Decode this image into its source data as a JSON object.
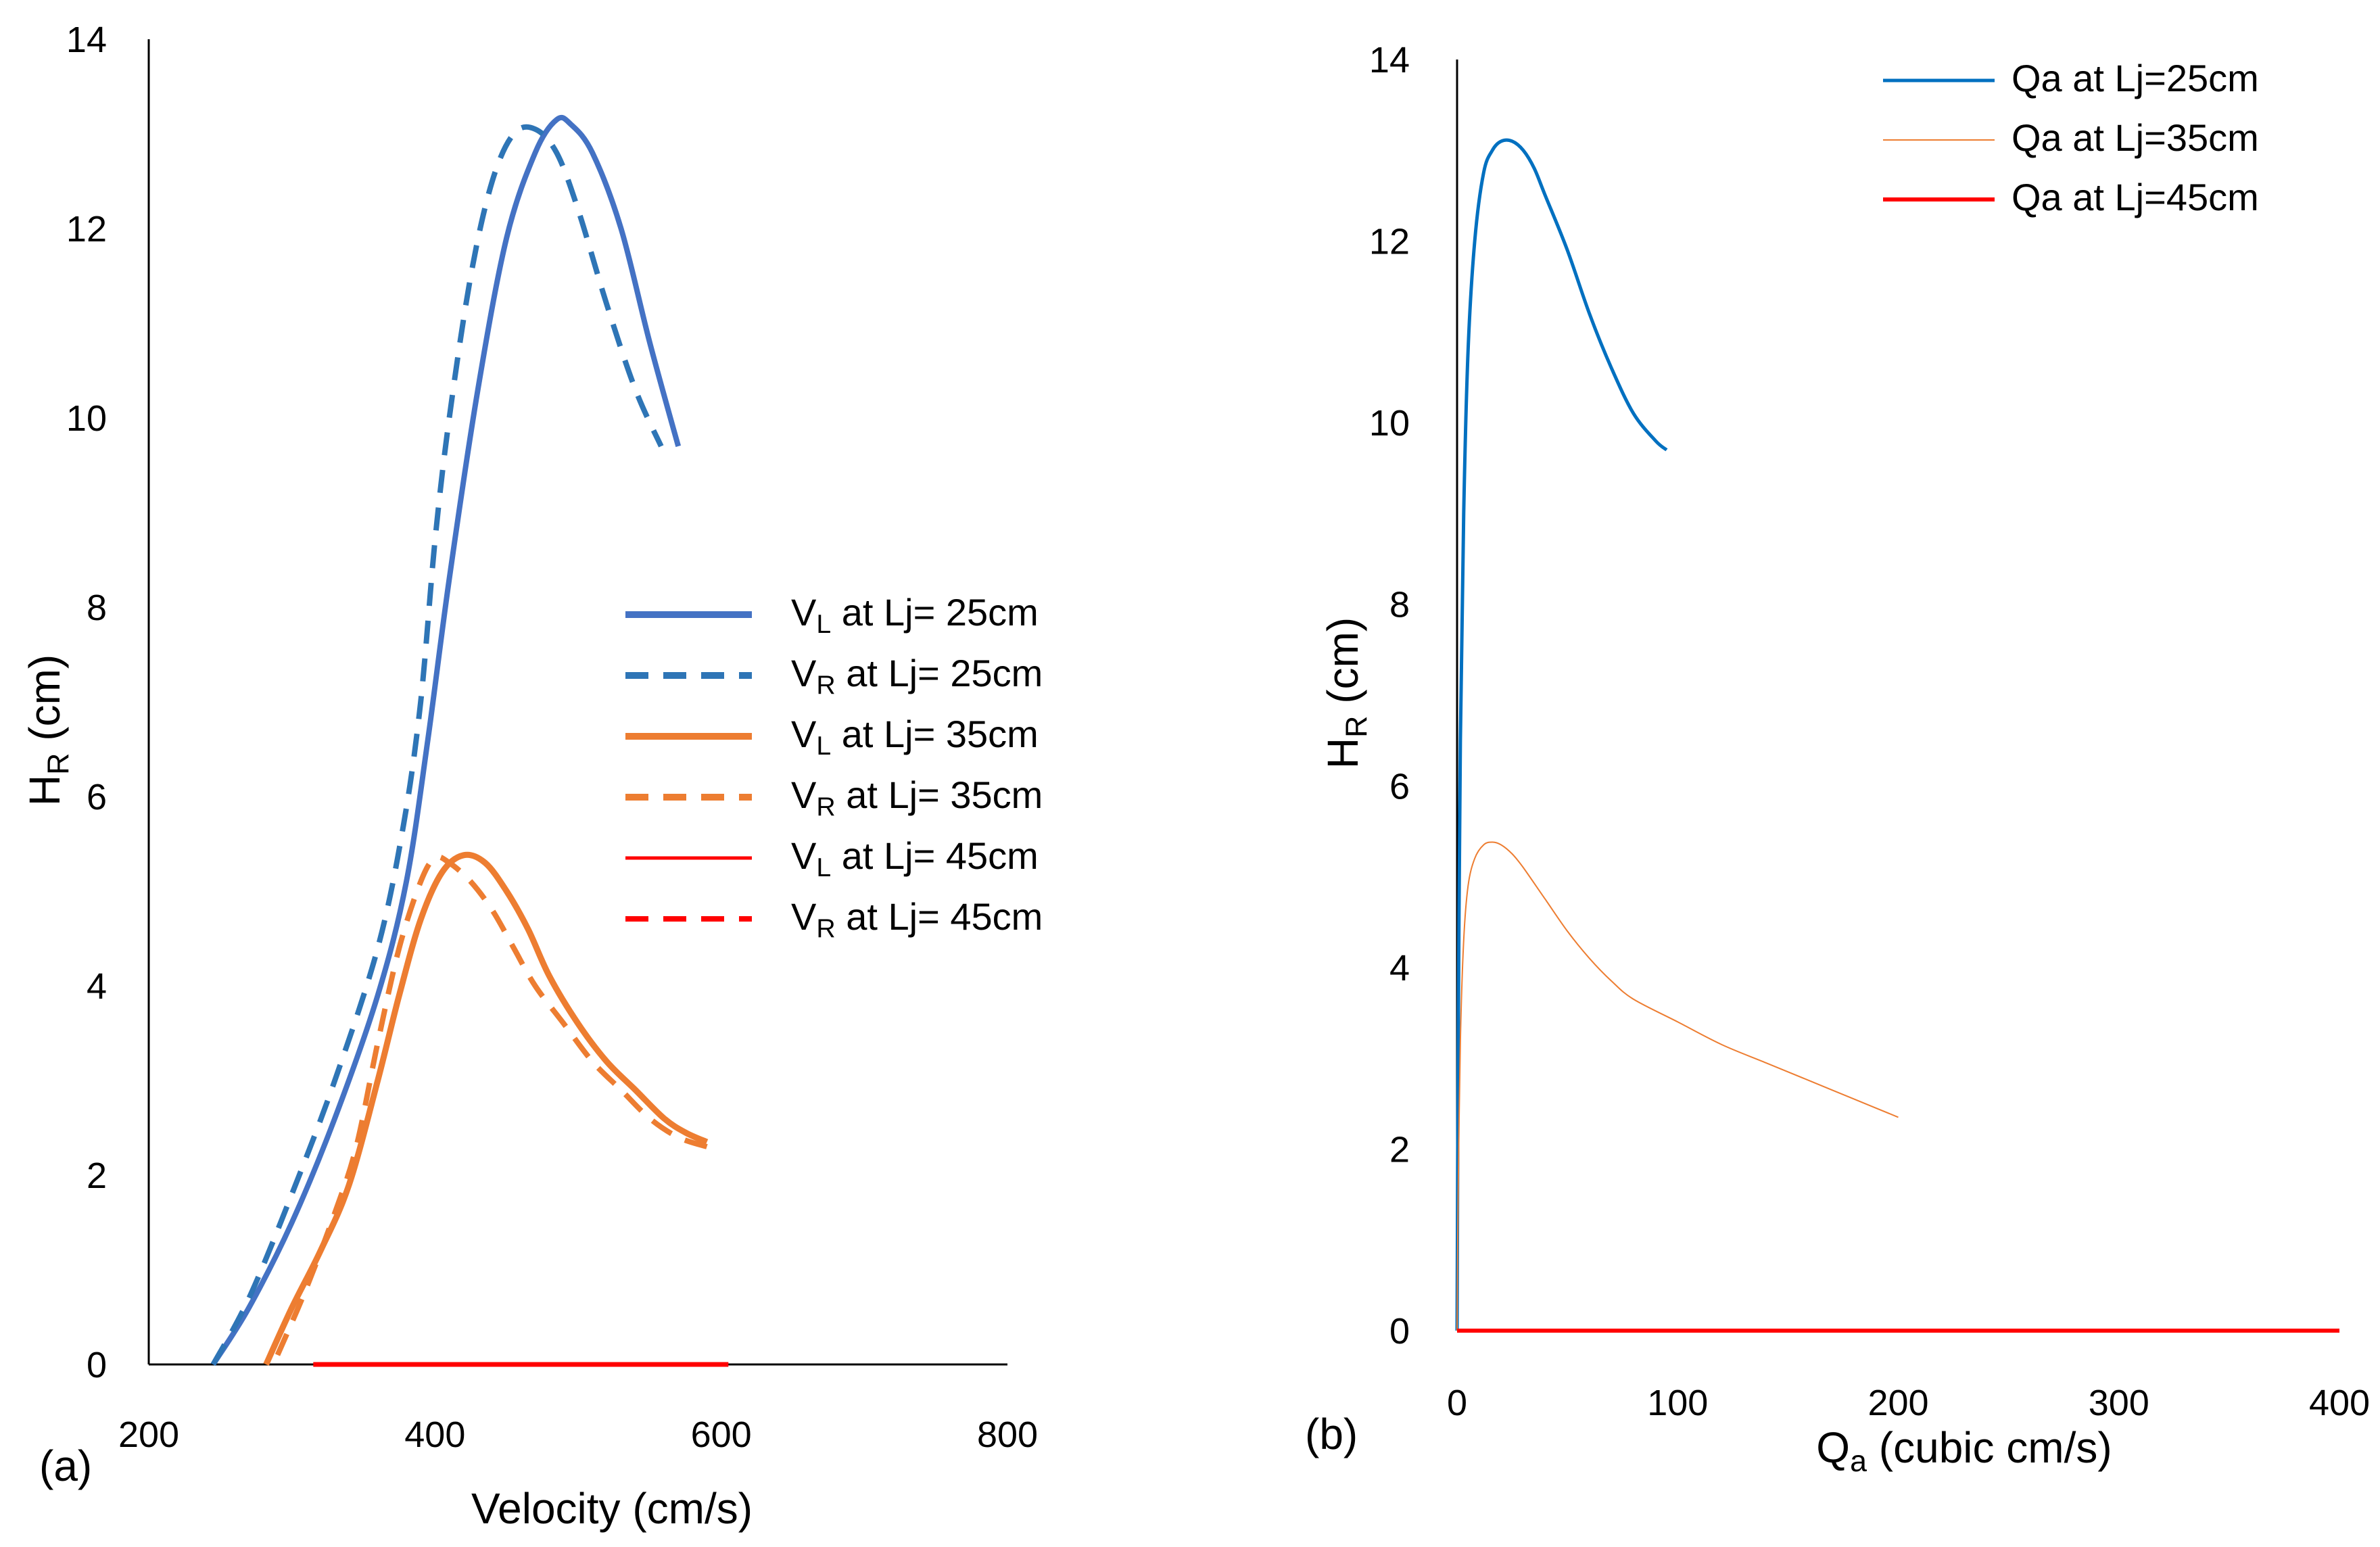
{
  "chart_data": [
    {
      "type": "line",
      "panel_label": "(a)",
      "xlabel": "Velocity  (cm/s)",
      "ylabel": {
        "base": "H",
        "sub": "R",
        "rest": " (cm)"
      },
      "xlim": [
        200,
        800
      ],
      "ylim": [
        0,
        14
      ],
      "xticks": [
        "200",
        "400",
        "600",
        "800"
      ],
      "yticks": [
        "0",
        "2",
        "4",
        "6",
        "8",
        "10",
        "12",
        "14"
      ],
      "grid": false,
      "legend_position": "center-right",
      "series": [
        {
          "name": "V_L at Lj= 25cm",
          "legend": {
            "base": "V",
            "sub": "L",
            "rest": " at Lj= 25cm"
          },
          "color": "#4472C4",
          "dash": "solid",
          "x": [
            245,
            270,
            300,
            330,
            360,
            380,
            395,
            410,
            430,
            450,
            470,
            485,
            495,
            510,
            530,
            550,
            570
          ],
          "y": [
            0,
            0.6,
            1.5,
            2.6,
            3.9,
            5.1,
            6.6,
            8.3,
            10.3,
            11.9,
            12.8,
            13.15,
            13.1,
            12.8,
            12.0,
            10.8,
            9.7
          ]
        },
        {
          "name": "V_R at Lj= 25cm",
          "legend": {
            "base": "V",
            "sub": "R",
            "rest": " at Lj= 25cm"
          },
          "color": "#2E75B6",
          "dash": "dashed",
          "x": [
            245,
            270,
            300,
            330,
            360,
            378,
            390,
            400,
            410,
            425,
            440,
            455,
            470,
            485,
            500,
            520,
            540,
            558
          ],
          "y": [
            0,
            0.7,
            1.8,
            3.0,
            4.4,
            5.7,
            7.0,
            8.7,
            10.0,
            11.5,
            12.5,
            13.0,
            13.05,
            12.8,
            12.2,
            11.2,
            10.3,
            9.7
          ]
        },
        {
          "name": "V_L at Lj= 35cm",
          "legend": {
            "base": "V",
            "sub": "L",
            "rest": " at Lj= 35cm"
          },
          "color": "#ED7D31",
          "dash": "solid",
          "x": [
            282,
            300,
            320,
            340,
            360,
            375,
            390,
            405,
            420,
            435,
            450,
            465,
            480,
            500,
            520,
            540,
            560,
            575,
            590
          ],
          "y": [
            0,
            0.6,
            1.2,
            1.9,
            3.0,
            3.9,
            4.7,
            5.2,
            5.38,
            5.3,
            5.0,
            4.6,
            4.1,
            3.6,
            3.2,
            2.9,
            2.6,
            2.45,
            2.35
          ]
        },
        {
          "name": "V_R at Lj= 35cm",
          "legend": {
            "base": "V",
            "sub": "R",
            "rest": " at Lj= 35cm"
          },
          "color": "#ED7D31",
          "dash": "dashed",
          "x": [
            290,
            310,
            330,
            345,
            360,
            375,
            390,
            400,
            410,
            425,
            440,
            455,
            470,
            490,
            510,
            530,
            550,
            570,
            590
          ],
          "y": [
            0.1,
            0.8,
            1.6,
            2.3,
            3.4,
            4.4,
            5.1,
            5.35,
            5.3,
            5.1,
            4.8,
            4.4,
            4.0,
            3.6,
            3.2,
            2.9,
            2.6,
            2.4,
            2.3
          ]
        },
        {
          "name": "V_L at Lj= 45cm",
          "legend": {
            "base": "V",
            "sub": "L",
            "rest": " at Lj= 45cm"
          },
          "color": "#FF0000",
          "dash": "solid",
          "x": [
            315,
            605
          ],
          "y": [
            0,
            0
          ]
        },
        {
          "name": "V_R at Lj= 45cm",
          "legend": {
            "base": "V",
            "sub": "R",
            "rest": " at Lj= 45cm"
          },
          "color": "#FF0000",
          "dash": "dashed",
          "x": [
            315,
            605
          ],
          "y": [
            0,
            0
          ]
        }
      ]
    },
    {
      "type": "line",
      "panel_label": "(b)",
      "xlabel": {
        "base": "Q",
        "sub": "a",
        "rest": " (cubic cm/s)"
      },
      "ylabel": {
        "base": "H",
        "sub": "R",
        "rest": " (cm)"
      },
      "xlim": [
        0,
        400
      ],
      "ylim": [
        0,
        14
      ],
      "xticks": [
        "0",
        "100",
        "200",
        "300",
        "400"
      ],
      "yticks": [
        "0",
        "2",
        "4",
        "6",
        "8",
        "10",
        "12",
        "14"
      ],
      "grid": false,
      "legend_position": "top-right",
      "series": [
        {
          "name": "Qa at Lj=25cm",
          "color": "#0070C0",
          "dash": "solid",
          "x": [
            0,
            0.5,
            1.5,
            3,
            5,
            8,
            12,
            16,
            20,
            25,
            30,
            35,
            40,
            50,
            60,
            70,
            80,
            90,
            95
          ],
          "y": [
            0,
            3.0,
            6.5,
            9.0,
            10.8,
            12.0,
            12.75,
            13.0,
            13.1,
            13.1,
            13.0,
            12.8,
            12.5,
            11.9,
            11.2,
            10.6,
            10.1,
            9.8,
            9.7
          ]
        },
        {
          "name": "Qa at Lj=35cm",
          "color": "#ED7D31",
          "dash": "solid",
          "x": [
            0,
            0.5,
            1.5,
            3,
            5,
            8,
            12,
            16,
            20,
            25,
            30,
            40,
            50,
            60,
            70,
            80,
            100,
            120,
            140,
            160,
            180,
            200
          ],
          "y": [
            0,
            1.5,
            3.2,
            4.3,
            4.9,
            5.2,
            5.35,
            5.38,
            5.35,
            5.25,
            5.1,
            4.75,
            4.4,
            4.1,
            3.85,
            3.65,
            3.4,
            3.15,
            2.95,
            2.75,
            2.55,
            2.35
          ]
        },
        {
          "name": "Qa at Lj=45cm",
          "color": "#FF0000",
          "dash": "solid",
          "x": [
            0,
            400
          ],
          "y": [
            0,
            0
          ]
        }
      ]
    }
  ]
}
